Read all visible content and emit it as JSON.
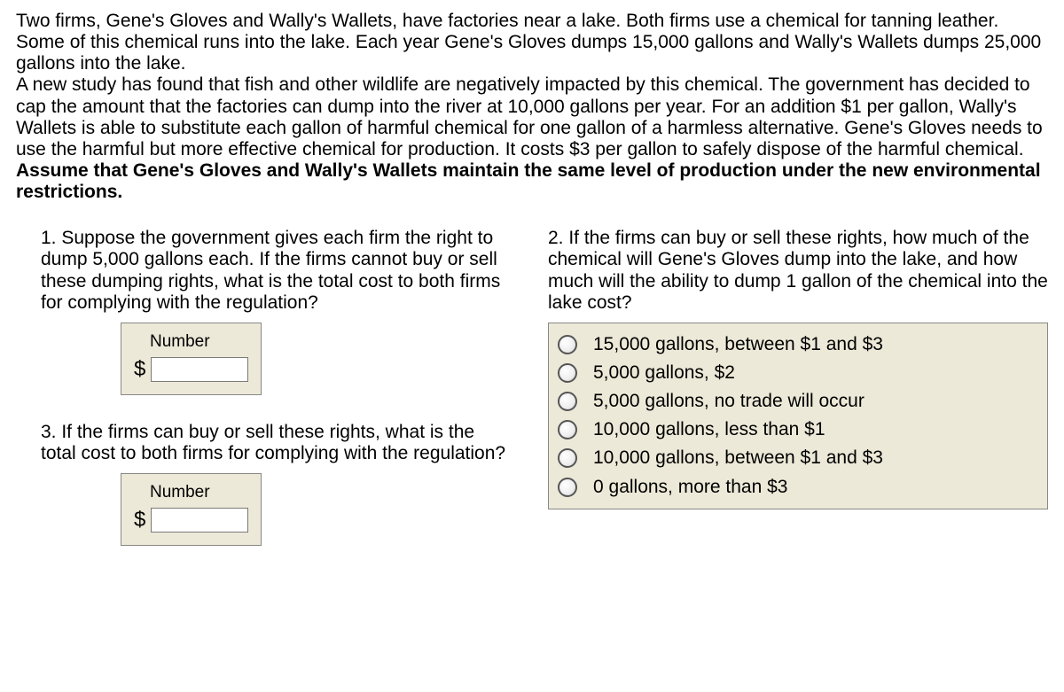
{
  "intro": {
    "p1": "Two firms, Gene's Gloves and Wally's Wallets, have factories near a lake. Both firms use a chemical for tanning leather. Some of this chemical runs into the lake. Each year Gene's Gloves dumps 15,000 gallons and Wally's Wallets dumps 25,000 gallons into the lake.",
    "p2a": "A new study has found that fish and other wildlife are negatively impacted by this chemical. The government has decided to cap the amount that the factories can dump into the river at 10,000 gallons per year. For an addition $1 per gallon, Wally's Wallets is able to substitute each gallon of harmful chemical for one gallon of a harmless alternative. Gene's Gloves needs to use the harmful but more effective chemical for production. It costs $3 per gallon to safely dispose of the harmful chemical. ",
    "p2b": "Assume that Gene's Gloves and Wally's Wallets maintain the same level of production under the new environmental restrictions."
  },
  "q1": {
    "text": "1. Suppose the government gives each firm the right to dump 5,000 gallons each. If the firms cannot buy or sell these dumping rights, what is the total cost to both firms for complying with the regulation?",
    "label": "Number",
    "prefix": "$",
    "value": ""
  },
  "q2": {
    "text": "2. If the firms can buy or sell these rights, how much of the chemical will Gene's Gloves dump into the lake, and how much will the ability to dump 1 gallon of the chemical into the lake cost?",
    "options": [
      "15,000 gallons, between $1 and $3",
      "5,000 gallons, $2",
      "5,000 gallons, no trade will occur",
      "10,000 gallons, less than $1",
      "10,000 gallons, between $1 and $3",
      "0 gallons, more than $3"
    ]
  },
  "q3": {
    "text": "3. If the firms can buy or sell these rights, what is the total cost to both firms for complying with the regulation?",
    "label": "Number",
    "prefix": "$",
    "value": ""
  }
}
